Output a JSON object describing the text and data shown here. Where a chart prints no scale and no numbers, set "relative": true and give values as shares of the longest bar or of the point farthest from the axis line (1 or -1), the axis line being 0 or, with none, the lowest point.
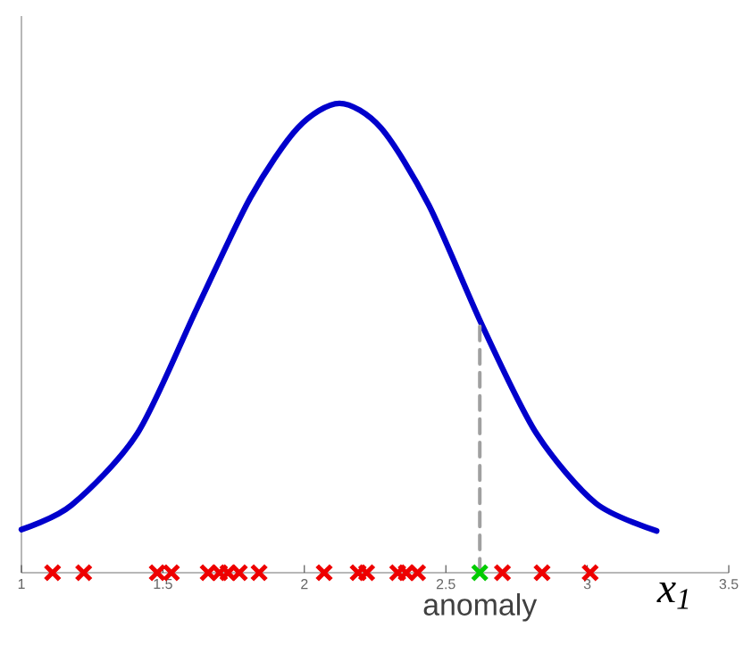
{
  "chart_data": {
    "type": "line",
    "relative": true,
    "xlabel": "x$_{1}$",
    "xlim": [
      1,
      3.5
    ],
    "xticks": [
      1,
      1.5,
      2,
      2.5,
      3,
      3.5
    ],
    "tick_labels": "x",
    "grid": false,
    "annotations": [
      {
        "text": "anomaly",
        "x": 2.62,
        "y": 0
      }
    ],
    "series": [
      {
        "type": "line",
        "color": "#0000cc",
        "marker": "none",
        "line_style": "solid",
        "x": [
          1.0,
          1.177,
          1.41,
          1.62,
          1.81,
          1.977,
          2.124,
          2.27,
          2.44,
          2.63,
          2.82,
          3.03,
          3.245
        ],
        "values": [
          0.092,
          0.144,
          0.297,
          0.563,
          0.8,
          0.948,
          1,
          0.948,
          0.783,
          0.525,
          0.297,
          0.148,
          0.089
        ]
      },
      {
        "type": "line",
        "color": "#a0a0a0",
        "marker": "none",
        "line_style": "dashed",
        "x": [
          2.62,
          2.62
        ],
        "values": [
          0,
          0.525
        ]
      },
      {
        "type": "scatter",
        "color": "#ee0000",
        "marker": "cross",
        "x": [
          1.11,
          1.22,
          1.48,
          1.53,
          1.66,
          1.7,
          1.73,
          1.77,
          1.84,
          2.07,
          2.19,
          2.22,
          2.33,
          2.36,
          2.4,
          2.7,
          2.84,
          3.01
        ],
        "values": [
          0,
          0,
          0,
          0,
          0,
          0,
          0,
          0,
          0,
          0,
          0,
          0,
          0,
          0,
          0,
          0,
          0,
          0
        ]
      },
      {
        "type": "scatter",
        "color": "#00cc00",
        "marker": "cross",
        "x": [
          2.62
        ],
        "values": [
          0
        ]
      }
    ]
  }
}
